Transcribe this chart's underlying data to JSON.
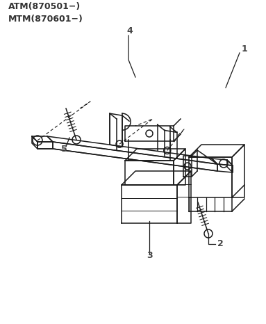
{
  "title_lines": [
    "ATM(870501−)",
    "MTM(870601−)"
  ],
  "background_color": "#ffffff",
  "line_color": "#1a1a1a",
  "label_color": "#444444",
  "figsize": [
    3.83,
    4.66
  ],
  "dpi": 100
}
